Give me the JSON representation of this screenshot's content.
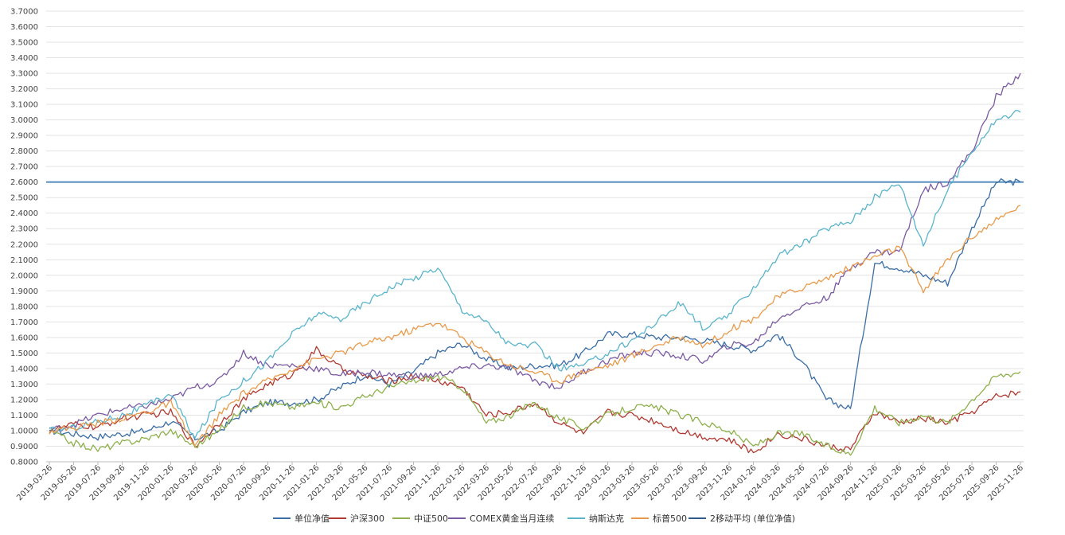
{
  "chart_data": {
    "type": "line",
    "title": "",
    "xlabel": "",
    "ylabel": "",
    "ylim": [
      0.8,
      3.7
    ],
    "y_ticks": [
      "0.8000",
      "0.9000",
      "1.0000",
      "1.1000",
      "1.2000",
      "1.3000",
      "1.4000",
      "1.5000",
      "1.6000",
      "1.7000",
      "1.8000",
      "1.9000",
      "2.0000",
      "2.1000",
      "2.2000",
      "2.3000",
      "2.4000",
      "2.5000",
      "2.6000",
      "2.7000",
      "2.8000",
      "2.9000",
      "3.0000",
      "3.1000",
      "3.2000",
      "3.3000",
      "3.4000",
      "3.5000",
      "3.6000",
      "3.7000"
    ],
    "x_ticks": [
      "2019-03-26",
      "2019-05-26",
      "2019-07-26",
      "2019-09-26",
      "2019-11-26",
      "2020-01-26",
      "2020-03-26",
      "2020-05-26",
      "2020-07-26",
      "2020-09-26",
      "2020-11-26",
      "2021-01-26",
      "2021-03-26",
      "2021-05-26",
      "2021-07-26",
      "2021-09-26",
      "2021-11-26",
      "2022-01-26",
      "2022-03-26",
      "2022-05-26",
      "2022-07-26",
      "2022-09-26",
      "2022-11-26",
      "2023-01-26",
      "2023-03-26",
      "2023-05-26",
      "2023-07-26",
      "2023-09-26",
      "2023-11-26",
      "2024-01-26",
      "2024-03-26",
      "2024-05-26",
      "2024-07-26",
      "2024-09-26",
      "2024-11-26",
      "2025-01-26",
      "2025-03-26",
      "2025-05-26",
      "2025-07-26",
      "2025-09-26",
      "2025-11-26"
    ],
    "grid": true,
    "legend_position": "bottom",
    "reference_line": {
      "y": 2.6,
      "color": "#4a86b8"
    },
    "series": [
      {
        "name": "单位净值",
        "color": "#3a6ea5",
        "values": [
          1.0,
          0.98,
          0.96,
          0.98,
          1.0,
          1.06,
          0.95,
          1.0,
          1.12,
          1.18,
          1.18,
          1.2,
          1.28,
          1.36,
          1.3,
          1.38,
          1.5,
          1.56,
          1.46,
          1.4,
          1.42,
          1.42,
          1.5,
          1.62,
          1.62,
          1.6,
          1.6,
          1.58,
          1.55,
          1.52,
          1.62,
          1.45,
          1.2,
          1.14,
          2.08,
          2.05,
          2.0,
          1.95,
          2.3,
          2.6,
          2.6
        ]
      },
      {
        "name": "沪深300",
        "color": "#b03a32",
        "values": [
          1.0,
          1.04,
          1.02,
          1.08,
          1.1,
          1.12,
          0.9,
          1.05,
          1.2,
          1.3,
          1.36,
          1.52,
          1.4,
          1.35,
          1.32,
          1.35,
          1.32,
          1.28,
          1.1,
          1.12,
          1.18,
          1.05,
          0.98,
          1.12,
          1.1,
          1.06,
          1.0,
          0.96,
          0.94,
          0.86,
          0.98,
          0.95,
          0.9,
          0.88,
          1.12,
          1.05,
          1.08,
          1.05,
          1.12,
          1.22,
          1.25
        ]
      },
      {
        "name": "中证500",
        "color": "#8db04a",
        "values": [
          1.0,
          0.92,
          0.88,
          0.92,
          0.95,
          1.0,
          0.9,
          1.0,
          1.15,
          1.18,
          1.15,
          1.18,
          1.15,
          1.22,
          1.28,
          1.32,
          1.35,
          1.28,
          1.05,
          1.1,
          1.18,
          1.08,
          1.02,
          1.1,
          1.15,
          1.15,
          1.1,
          1.05,
          1.0,
          0.9,
          0.98,
          0.98,
          0.9,
          0.85,
          1.15,
          1.05,
          1.1,
          1.05,
          1.2,
          1.35,
          1.38
        ]
      },
      {
        "name": "COMEX黄金当月连续",
        "color": "#7a5aa3",
        "values": [
          1.0,
          1.04,
          1.1,
          1.14,
          1.16,
          1.2,
          1.28,
          1.32,
          1.5,
          1.42,
          1.42,
          1.4,
          1.36,
          1.38,
          1.36,
          1.35,
          1.36,
          1.4,
          1.42,
          1.4,
          1.32,
          1.28,
          1.38,
          1.45,
          1.5,
          1.5,
          1.48,
          1.45,
          1.55,
          1.56,
          1.72,
          1.8,
          1.85,
          2.05,
          2.15,
          2.15,
          2.55,
          2.6,
          2.8,
          3.15,
          3.3
        ]
      },
      {
        "name": "纳斯达克",
        "color": "#5ab4cc",
        "values": [
          1.0,
          1.02,
          1.06,
          1.1,
          1.16,
          1.24,
          0.95,
          1.2,
          1.32,
          1.45,
          1.62,
          1.75,
          1.72,
          1.82,
          1.92,
          1.98,
          2.05,
          1.78,
          1.7,
          1.55,
          1.55,
          1.4,
          1.42,
          1.5,
          1.58,
          1.7,
          1.82,
          1.65,
          1.75,
          1.92,
          2.12,
          2.2,
          2.3,
          2.35,
          2.5,
          2.6,
          2.2,
          2.55,
          2.8,
          3.0,
          3.05
        ]
      },
      {
        "name": "标普500",
        "color": "#e89a4a",
        "values": [
          1.0,
          1.02,
          1.05,
          1.08,
          1.12,
          1.18,
          0.9,
          1.1,
          1.24,
          1.32,
          1.4,
          1.46,
          1.5,
          1.56,
          1.6,
          1.65,
          1.7,
          1.6,
          1.5,
          1.42,
          1.38,
          1.32,
          1.38,
          1.42,
          1.48,
          1.55,
          1.6,
          1.55,
          1.65,
          1.72,
          1.86,
          1.92,
          1.98,
          2.05,
          2.12,
          2.18,
          1.9,
          2.1,
          2.25,
          2.35,
          2.45
        ]
      },
      {
        "name": "2移动平均 (单位净值)",
        "color": "#2e5c8a",
        "values": [
          1.0,
          0.98,
          0.96,
          0.98,
          1.0,
          1.06,
          0.95,
          1.0,
          1.12,
          1.18,
          1.18,
          1.2,
          1.28,
          1.36,
          1.3,
          1.38,
          1.5,
          1.56,
          1.46,
          1.4,
          1.42,
          1.42,
          1.5,
          1.62,
          1.62,
          1.6,
          1.6,
          1.58,
          1.55,
          1.52,
          1.62,
          1.45,
          1.2,
          1.14,
          2.08,
          2.05,
          2.0,
          1.95,
          2.3,
          2.6,
          2.6
        ]
      }
    ]
  }
}
